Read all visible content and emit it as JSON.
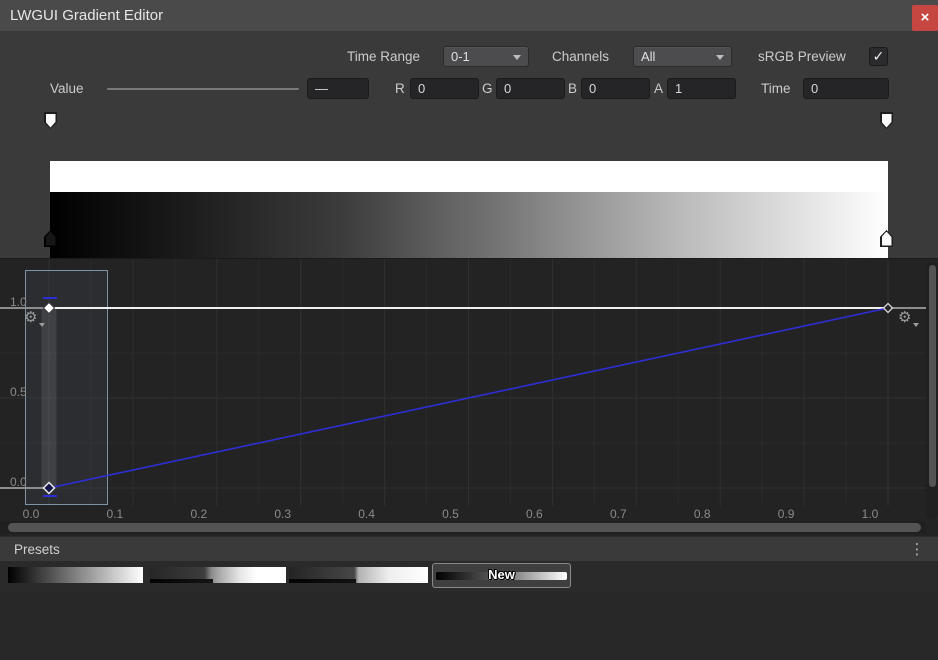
{
  "window": {
    "title": "LWGUI Gradient Editor",
    "close_glyph": "×"
  },
  "toolbar": {
    "time_range_label": "Time Range",
    "time_range_value": "0-1",
    "channels_label": "Channels",
    "channels_value": "All",
    "srgb_label": "sRGB Preview",
    "srgb_checked": true,
    "check_glyph": "✓"
  },
  "value_row": {
    "value_label": "Value",
    "value_field": "—",
    "r_label": "R",
    "r_value": "0",
    "g_label": "G",
    "g_value": "0",
    "b_label": "B",
    "b_value": "0",
    "a_label": "A",
    "a_value": "1",
    "time_label": "Time",
    "time_value": "0"
  },
  "gradient_bar": {
    "alpha_stops": [
      {
        "time": 0,
        "alpha": 1
      },
      {
        "time": 1,
        "alpha": 1
      }
    ],
    "color_stops": [
      {
        "time": 0,
        "color": "#000000"
      },
      {
        "time": 1,
        "color": "#ffffff"
      }
    ]
  },
  "curve": {
    "x_ticks": [
      "0.0",
      "0.1",
      "0.2",
      "0.3",
      "0.4",
      "0.5",
      "0.6",
      "0.7",
      "0.8",
      "0.9",
      "1.0"
    ],
    "y_ticks": [
      {
        "label": "1.0",
        "v": 1
      },
      {
        "label": "0.5",
        "v": 0.5
      },
      {
        "label": "0.0",
        "v": 0
      }
    ],
    "alpha_curve": {
      "color": "#f0f0f0",
      "points": [
        [
          0,
          1
        ],
        [
          1,
          1
        ]
      ]
    },
    "value_curve": {
      "color": "#2e2ed6",
      "points": [
        [
          0,
          0
        ],
        [
          1,
          1
        ]
      ]
    },
    "keys": [
      {
        "t": 0,
        "v": 1,
        "style": "filled"
      },
      {
        "t": 0,
        "v": 0,
        "style": "selected"
      },
      {
        "t": 1,
        "v": 1,
        "style": "hollow"
      }
    ],
    "gear_glyph": "⚙"
  },
  "presets": {
    "header": "Presets",
    "menu_glyph": "⋮",
    "items": [
      "black-to-white",
      "dark-step-white",
      "dark-ramp-white"
    ],
    "new_button_label": "New"
  },
  "colors": {
    "accent_blue": "#2e2ed6",
    "close_red": "#c64742",
    "panel": "#3a3a3b",
    "curve_bg": "#232324",
    "selection_border": "#7e93a4"
  }
}
